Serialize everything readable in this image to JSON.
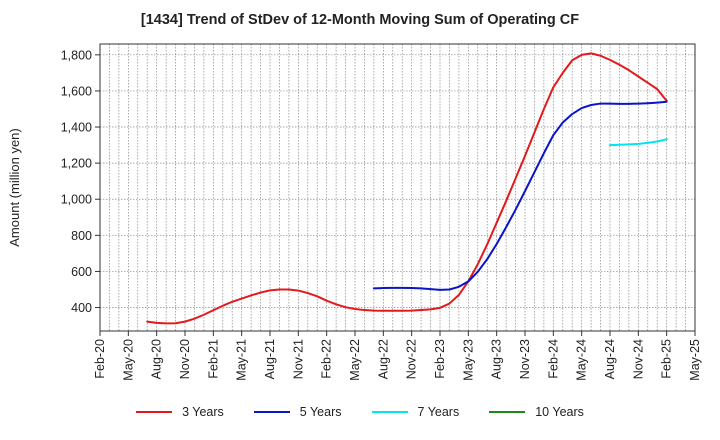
{
  "chart_data": {
    "type": "line",
    "title": "[1434]  Trend of StDev of 12-Month Moving Sum of Operating CF",
    "ylabel": "Amount (million yen)",
    "xlabel": "",
    "ylim": [
      270,
      1860
    ],
    "yticks": [
      400,
      600,
      800,
      1000,
      1200,
      1400,
      1600,
      1800
    ],
    "ytick_labels": [
      "400",
      "600",
      "800",
      "1,000",
      "1,200",
      "1,400",
      "1,600",
      "1,800"
    ],
    "x_labels": [
      "Feb-20",
      "May-20",
      "Aug-20",
      "Nov-20",
      "Feb-21",
      "May-21",
      "Aug-21",
      "Nov-21",
      "Feb-22",
      "May-22",
      "Aug-22",
      "Nov-22",
      "Feb-23",
      "May-23",
      "Aug-23",
      "Nov-23",
      "Feb-24",
      "May-24",
      "Aug-24",
      "Nov-24",
      "Feb-25",
      "May-25"
    ],
    "grid": true,
    "legend_position": "bottom",
    "series": [
      {
        "name": "3 Years",
        "color": "#e31a1c",
        "points": [
          [
            "Jul-20",
            322
          ],
          [
            "Aug-20",
            315
          ],
          [
            "Sep-20",
            312
          ],
          [
            "Oct-20",
            313
          ],
          [
            "Nov-20",
            322
          ],
          [
            "Dec-20",
            338
          ],
          [
            "Jan-21",
            360
          ],
          [
            "Feb-21",
            385
          ],
          [
            "Mar-21",
            410
          ],
          [
            "Apr-21",
            432
          ],
          [
            "May-21",
            450
          ],
          [
            "Jun-21",
            467
          ],
          [
            "Jul-21",
            483
          ],
          [
            "Aug-21",
            495
          ],
          [
            "Sep-21",
            500
          ],
          [
            "Oct-21",
            500
          ],
          [
            "Nov-21",
            494
          ],
          [
            "Dec-21",
            480
          ],
          [
            "Jan-22",
            462
          ],
          [
            "Feb-22",
            438
          ],
          [
            "Mar-22",
            418
          ],
          [
            "Apr-22",
            402
          ],
          [
            "May-22",
            392
          ],
          [
            "Jun-22",
            386
          ],
          [
            "Jul-22",
            383
          ],
          [
            "Aug-22",
            382
          ],
          [
            "Sep-22",
            382
          ],
          [
            "Oct-22",
            382
          ],
          [
            "Nov-22",
            383
          ],
          [
            "Dec-22",
            386
          ],
          [
            "Jan-23",
            390
          ],
          [
            "Feb-23",
            398
          ],
          [
            "Mar-23",
            422
          ],
          [
            "Apr-23",
            470
          ],
          [
            "May-23",
            545
          ],
          [
            "Jun-23",
            640
          ],
          [
            "Jul-23",
            750
          ],
          [
            "Aug-23",
            870
          ],
          [
            "Sep-23",
            990
          ],
          [
            "Oct-23",
            1115
          ],
          [
            "Nov-23",
            1240
          ],
          [
            "Dec-23",
            1370
          ],
          [
            "Jan-24",
            1500
          ],
          [
            "Feb-24",
            1620
          ],
          [
            "Mar-24",
            1700
          ],
          [
            "Apr-24",
            1770
          ],
          [
            "May-24",
            1800
          ],
          [
            "Jun-24",
            1808
          ],
          [
            "Jul-24",
            1795
          ],
          [
            "Aug-24",
            1772
          ],
          [
            "Sep-24",
            1745
          ],
          [
            "Oct-24",
            1715
          ],
          [
            "Nov-24",
            1680
          ],
          [
            "Dec-24",
            1645
          ],
          [
            "Jan-25",
            1610
          ],
          [
            "Feb-25",
            1545
          ]
        ]
      },
      {
        "name": "5 Years",
        "color": "#0a14c8",
        "points": [
          [
            "Jul-22",
            506
          ],
          [
            "Aug-22",
            508
          ],
          [
            "Sep-22",
            509
          ],
          [
            "Oct-22",
            509
          ],
          [
            "Nov-22",
            508
          ],
          [
            "Dec-22",
            506
          ],
          [
            "Jan-23",
            502
          ],
          [
            "Feb-23",
            498
          ],
          [
            "Mar-23",
            500
          ],
          [
            "Apr-23",
            515
          ],
          [
            "May-23",
            545
          ],
          [
            "Jun-23",
            598
          ],
          [
            "Jul-23",
            668
          ],
          [
            "Aug-23",
            752
          ],
          [
            "Sep-23",
            845
          ],
          [
            "Oct-23",
            942
          ],
          [
            "Nov-23",
            1045
          ],
          [
            "Dec-23",
            1150
          ],
          [
            "Jan-24",
            1255
          ],
          [
            "Feb-24",
            1355
          ],
          [
            "Mar-24",
            1425
          ],
          [
            "Apr-24",
            1472
          ],
          [
            "May-24",
            1505
          ],
          [
            "Jun-24",
            1522
          ],
          [
            "Jul-24",
            1530
          ],
          [
            "Aug-24",
            1530
          ],
          [
            "Sep-24",
            1528
          ],
          [
            "Oct-24",
            1528
          ],
          [
            "Nov-24",
            1530
          ],
          [
            "Dec-24",
            1532
          ],
          [
            "Jan-25",
            1535
          ],
          [
            "Feb-25",
            1540
          ]
        ]
      },
      {
        "name": "7 Years",
        "color": "#00e5ee",
        "points": [
          [
            "Aug-24",
            1300
          ],
          [
            "Sep-24",
            1302
          ],
          [
            "Oct-24",
            1304
          ],
          [
            "Nov-24",
            1307
          ],
          [
            "Dec-24",
            1312
          ],
          [
            "Jan-25",
            1320
          ],
          [
            "Feb-25",
            1332
          ]
        ]
      },
      {
        "name": "10 Years",
        "color": "#1a8a1a",
        "points": []
      }
    ]
  }
}
